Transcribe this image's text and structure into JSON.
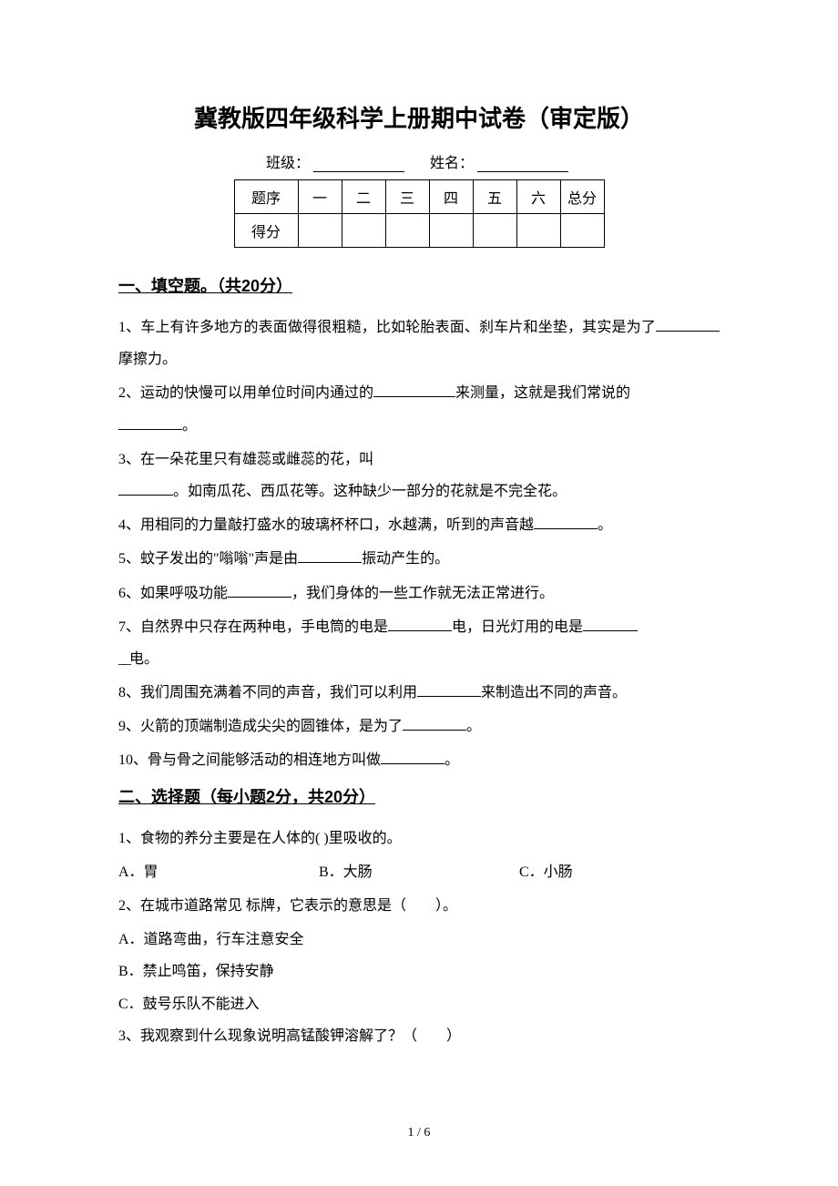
{
  "title": "冀教版四年级科学上册期中试卷（审定版）",
  "class_label": "班级：",
  "name_label": "姓名：",
  "score_table": {
    "row1": [
      "题序",
      "一",
      "二",
      "三",
      "四",
      "五",
      "六",
      "总分"
    ],
    "row2_label": "得分"
  },
  "section1": {
    "heading": "一、填空题。（共20分）",
    "q1_a": "1、车上有许多地方的表面做得很粗糙，比如轮胎表面、刹车片和坐垫，其实是为了",
    "q1_b": "摩擦力。",
    "q2_a": "2、运动的快慢可以用单位时间内通过的",
    "q2_b": "来测量，这就是我们常说的",
    "q2_c": "。",
    "q3_a": "3、在一朵花里只有雄蕊或雌蕊的花，叫",
    "q3_b": "。如南瓜花、西瓜花等。这种缺少一部分的花就是不完全花。",
    "q4_a": "4、用相同的力量敲打盛水的玻璃杯杯口，水越满，听到的声音越",
    "q4_b": "。",
    "q5_a": "5、蚊子发出的\"嗡嗡\"声是由",
    "q5_b": "振动产生的。",
    "q6_a": "6、如果呼吸功能",
    "q6_b": "，我们身体的一些工作就无法正常进行。",
    "q7_a": "7、自然界中只存在两种电，手电筒的电是",
    "q7_b": "电，日光灯用的电是",
    "q7_c": "电。",
    "q8_a": "8、我们周围充满着不同的声音，我们可以利用",
    "q8_b": "来制造出不同的声音。",
    "q9_a": "9、火箭的顶端制造成尖尖的圆锥体，是为了",
    "q9_b": "。",
    "q10_a": "10、骨与骨之间能够活动的相连地方叫做",
    "q10_b": "。"
  },
  "section2": {
    "heading": "二、选择题（每小题2分，共20分）",
    "q1": "1、食物的养分主要是在人体的(   )里吸收的。",
    "q1_opts": [
      "A．胃",
      "B．大肠",
      "C．小肠"
    ],
    "q2": "2、在城市道路常见 标牌，它表示的意思是（　　）。",
    "q2_opts": [
      "A．道路弯曲，行车注意安全",
      "B．禁止鸣笛，保持安静",
      "C．鼓号乐队不能进入"
    ],
    "q3": "3、我观察到什么现象说明高锰酸钾溶解了？（　　）"
  },
  "page_number": "1 / 6"
}
